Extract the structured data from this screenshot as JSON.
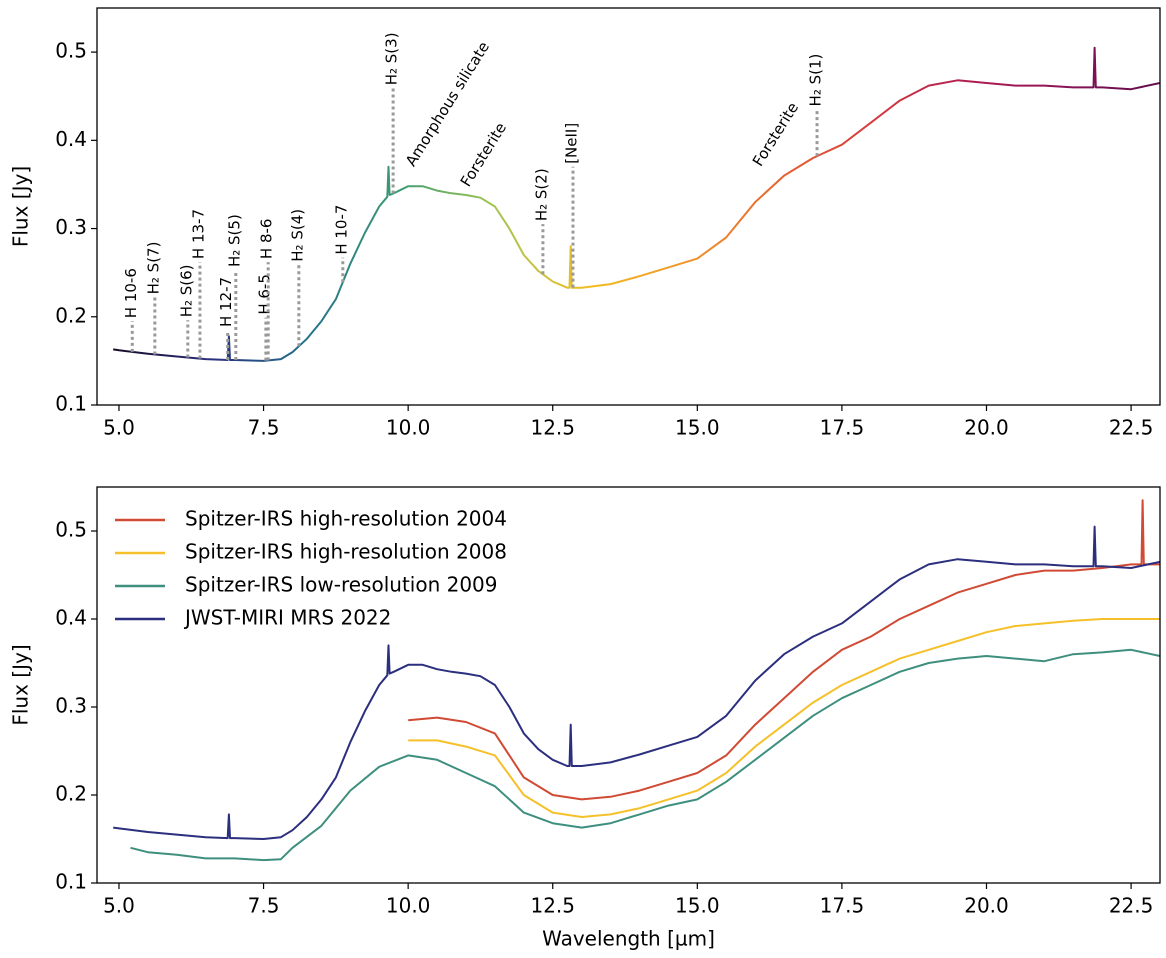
{
  "chart_data": [
    {
      "type": "line",
      "ylabel": "Flux [Jy]",
      "x": [
        4.9,
        5.0,
        5.5,
        6.0,
        6.5,
        6.88,
        6.9,
        6.92,
        7.0,
        7.5,
        7.8,
        8.0,
        8.25,
        8.5,
        8.75,
        9.0,
        9.25,
        9.5,
        9.64,
        9.66,
        9.68,
        9.75,
        10.0,
        10.25,
        10.5,
        10.75,
        11.0,
        11.25,
        11.5,
        11.75,
        12.0,
        12.25,
        12.5,
        12.75,
        12.79,
        12.81,
        12.83,
        13.0,
        13.5,
        14.0,
        14.5,
        15.0,
        15.5,
        16.0,
        16.5,
        17.0,
        17.5,
        18.0,
        18.5,
        19.0,
        19.5,
        20.0,
        20.5,
        21.0,
        21.5,
        21.85,
        21.87,
        21.89,
        22.0,
        22.5,
        23.0
      ],
      "values": [
        0.163,
        0.162,
        0.158,
        0.155,
        0.152,
        0.151,
        0.178,
        0.151,
        0.151,
        0.15,
        0.152,
        0.16,
        0.175,
        0.195,
        0.22,
        0.26,
        0.295,
        0.325,
        0.336,
        0.37,
        0.338,
        0.34,
        0.348,
        0.348,
        0.343,
        0.34,
        0.338,
        0.335,
        0.325,
        0.3,
        0.27,
        0.252,
        0.24,
        0.233,
        0.233,
        0.28,
        0.233,
        0.233,
        0.237,
        0.246,
        0.256,
        0.266,
        0.29,
        0.33,
        0.36,
        0.38,
        0.395,
        0.42,
        0.445,
        0.462,
        0.468,
        0.465,
        0.462,
        0.462,
        0.46,
        0.46,
        0.505,
        0.46,
        0.46,
        0.458,
        0.465
      ],
      "colormap": [
        "#160a26",
        "#2a2d7a",
        "#22708e",
        "#3d9c73",
        "#a3c551",
        "#f2bd22",
        "#f0962a",
        "#e8632e",
        "#d43a40",
        "#b01e53",
        "#8a1257",
        "#5e0d4a"
      ],
      "xlim": [
        4.62,
        23.0
      ],
      "ylim": [
        0.1,
        0.55
      ],
      "xticks": [
        {
          "value": 5,
          "label": "5.0"
        },
        7.5,
        {
          "value": 10,
          "label": "10.0"
        },
        12.5,
        {
          "value": 15,
          "label": "15.0"
        },
        17.5,
        {
          "value": 20,
          "label": "20.0"
        },
        22.5
      ],
      "yticks": [
        0.1,
        0.2,
        0.3,
        0.4,
        0.5
      ],
      "line_labels": [
        {
          "text": "H 10-6",
          "x": 5.23,
          "y": 0.195
        },
        {
          "text": "H₂ S(7)",
          "x": 5.62,
          "y": 0.222
        },
        {
          "text": "H₂ S(6)",
          "x": 6.19,
          "y": 0.196
        },
        {
          "text": "H 13-7",
          "x": 6.4,
          "y": 0.262
        },
        {
          "text": "H 12-7",
          "x": 6.88,
          "y": 0.185
        },
        {
          "text": "H₂ S(5)",
          "x": 7.02,
          "y": 0.253
        },
        {
          "text": "H 6-5",
          "x": 7.54,
          "y": 0.199
        },
        {
          "text": "H 8-6",
          "x": 7.58,
          "y": 0.262
        },
        {
          "text": "H₂ S(4)",
          "x": 8.11,
          "y": 0.259
        },
        {
          "text": "H 10-7",
          "x": 8.87,
          "y": 0.267
        },
        {
          "text": "H₂ S(3)",
          "x": 9.74,
          "y": 0.459
        },
        {
          "text": "H₂ S(2)",
          "x": 12.33,
          "y": 0.305
        },
        {
          "text": "[NeII]",
          "x": 12.85,
          "y": 0.37
        },
        {
          "text": "H₂ S(1)",
          "x": 17.07,
          "y": 0.435
        }
      ],
      "feature_labels": [
        {
          "text": "Amorphous silicate",
          "x": 10.03,
          "y": 0.372
        },
        {
          "text": "Forsterite",
          "x": 10.98,
          "y": 0.349
        },
        {
          "text": "Forsterite",
          "x": 16.03,
          "y": 0.372
        }
      ]
    },
    {
      "type": "line",
      "ylabel": "Flux [Jy]",
      "xlabel": "Wavelength [µm]",
      "legend": "upper left",
      "xlim": [
        4.62,
        23.0
      ],
      "ylim": [
        0.1,
        0.55
      ],
      "xticks": [
        {
          "value": 5,
          "label": "5.0"
        },
        7.5,
        {
          "value": 10,
          "label": "10.0"
        },
        12.5,
        {
          "value": 15,
          "label": "15.0"
        },
        17.5,
        {
          "value": 20,
          "label": "20.0"
        },
        22.5
      ],
      "yticks": [
        0.1,
        0.2,
        0.3,
        0.4,
        0.5
      ],
      "series": [
        {
          "name": "Spitzer-IRS high-resolution 2004",
          "color": "#d04a34",
          "x": [
            10.0,
            10.5,
            11.0,
            11.5,
            12.0,
            12.5,
            13.0,
            13.5,
            14.0,
            14.5,
            15.0,
            15.5,
            16.0,
            16.5,
            17.0,
            17.5,
            18.0,
            18.5,
            19.0,
            19.5,
            20.0,
            20.5,
            21.0,
            21.5,
            22.0,
            22.5,
            22.68,
            22.7,
            22.72,
            23.0
          ],
          "values": [
            0.285,
            0.288,
            0.283,
            0.27,
            0.22,
            0.2,
            0.195,
            0.198,
            0.205,
            0.215,
            0.225,
            0.245,
            0.28,
            0.31,
            0.34,
            0.365,
            0.38,
            0.4,
            0.415,
            0.43,
            0.44,
            0.45,
            0.455,
            0.455,
            0.458,
            0.462,
            0.462,
            0.535,
            0.462,
            0.462
          ]
        },
        {
          "name": "Spitzer-IRS high-resolution 2008",
          "color": "#f5c02a",
          "x": [
            10.0,
            10.5,
            11.0,
            11.5,
            12.0,
            12.5,
            13.0,
            13.5,
            14.0,
            14.5,
            15.0,
            15.5,
            16.0,
            16.5,
            17.0,
            17.5,
            18.0,
            18.5,
            19.0,
            19.5,
            20.0,
            20.5,
            21.0,
            21.5,
            22.0,
            22.5,
            23.0
          ],
          "values": [
            0.262,
            0.262,
            0.255,
            0.245,
            0.2,
            0.18,
            0.175,
            0.178,
            0.185,
            0.195,
            0.205,
            0.225,
            0.255,
            0.28,
            0.305,
            0.325,
            0.34,
            0.355,
            0.365,
            0.375,
            0.385,
            0.392,
            0.395,
            0.398,
            0.4,
            0.4,
            0.4
          ]
        },
        {
          "name": "Spitzer-IRS low-resolution 2009",
          "color": "#3f8f7f",
          "x": [
            5.2,
            5.5,
            6.0,
            6.5,
            7.0,
            7.5,
            7.8,
            8.0,
            8.5,
            9.0,
            9.5,
            10.0,
            10.5,
            11.0,
            11.5,
            12.0,
            12.5,
            13.0,
            13.5,
            14.0,
            14.5,
            15.0,
            15.5,
            16.0,
            16.5,
            17.0,
            17.5,
            18.0,
            18.5,
            19.0,
            19.5,
            20.0,
            20.5,
            21.0,
            21.5,
            22.0,
            22.5,
            23.0
          ],
          "values": [
            0.14,
            0.135,
            0.132,
            0.128,
            0.128,
            0.126,
            0.127,
            0.14,
            0.165,
            0.205,
            0.232,
            0.245,
            0.24,
            0.225,
            0.21,
            0.18,
            0.168,
            0.163,
            0.168,
            0.178,
            0.188,
            0.195,
            0.215,
            0.24,
            0.265,
            0.29,
            0.31,
            0.325,
            0.34,
            0.35,
            0.355,
            0.358,
            0.355,
            0.352,
            0.36,
            0.362,
            0.365,
            0.358
          ]
        },
        {
          "name": "JWST-MIRI MRS 2022",
          "color": "#2b2f7e",
          "x": [
            4.9,
            5.0,
            5.5,
            6.0,
            6.5,
            6.88,
            6.9,
            6.92,
            7.0,
            7.5,
            7.8,
            8.0,
            8.25,
            8.5,
            8.75,
            9.0,
            9.25,
            9.5,
            9.64,
            9.66,
            9.68,
            9.75,
            10.0,
            10.25,
            10.5,
            10.75,
            11.0,
            11.25,
            11.5,
            11.75,
            12.0,
            12.25,
            12.5,
            12.75,
            12.79,
            12.81,
            12.83,
            13.0,
            13.5,
            14.0,
            14.5,
            15.0,
            15.5,
            16.0,
            16.5,
            17.0,
            17.5,
            18.0,
            18.5,
            19.0,
            19.5,
            20.0,
            20.5,
            21.0,
            21.5,
            21.85,
            21.87,
            21.89,
            22.0,
            22.5,
            23.0
          ],
          "values": [
            0.163,
            0.162,
            0.158,
            0.155,
            0.152,
            0.151,
            0.178,
            0.151,
            0.151,
            0.15,
            0.152,
            0.16,
            0.175,
            0.195,
            0.22,
            0.26,
            0.295,
            0.325,
            0.336,
            0.37,
            0.338,
            0.34,
            0.348,
            0.348,
            0.343,
            0.34,
            0.338,
            0.335,
            0.325,
            0.3,
            0.27,
            0.252,
            0.24,
            0.233,
            0.233,
            0.28,
            0.233,
            0.233,
            0.237,
            0.246,
            0.256,
            0.266,
            0.29,
            0.33,
            0.36,
            0.38,
            0.395,
            0.42,
            0.445,
            0.462,
            0.468,
            0.465,
            0.462,
            0.462,
            0.46,
            0.46,
            0.505,
            0.46,
            0.46,
            0.458,
            0.465
          ]
        }
      ]
    }
  ]
}
